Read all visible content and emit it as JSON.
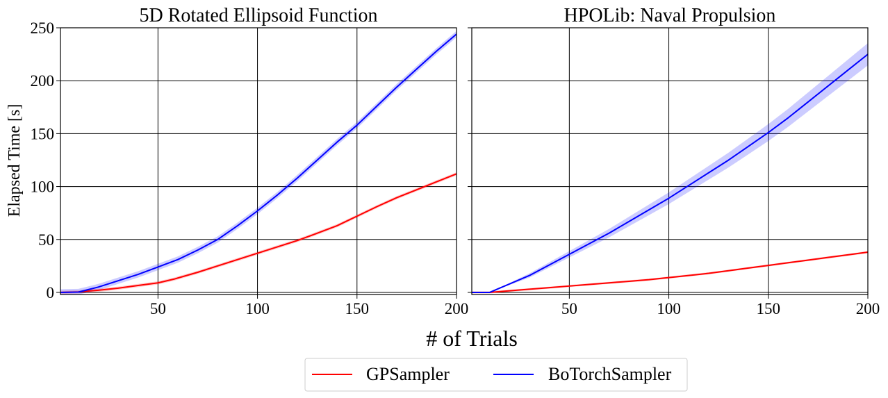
{
  "figure": {
    "xlabel": "# of Trials",
    "ylabel": "Elapsed Time [s]"
  },
  "legend": {
    "placement": "bottom-center",
    "items": [
      {
        "label": "GPSampler",
        "color": "#ff0000"
      },
      {
        "label": "BoTorchSampler",
        "color": "#0000ff"
      }
    ]
  },
  "chart_data": [
    {
      "type": "line",
      "title": "5D Rotated Ellipsoid Function",
      "xlabel": "# of Trials",
      "ylabel": "Elapsed Time [s]",
      "xlim": [
        1,
        200
      ],
      "ylim": [
        -2,
        250
      ],
      "xticks": [
        50,
        100,
        150,
        200
      ],
      "yticks": [
        0,
        50,
        100,
        150,
        200,
        250
      ],
      "grid": true,
      "series": [
        {
          "name": "GPSampler",
          "color": "#ff0000",
          "x": [
            1,
            10,
            20,
            30,
            40,
            50,
            58,
            70,
            80,
            90,
            100,
            110,
            120,
            128,
            140,
            150,
            160,
            170,
            180,
            190,
            200
          ],
          "y": [
            0,
            0.5,
            2,
            4,
            6.5,
            9,
            12.5,
            19,
            25,
            31,
            37,
            43,
            49,
            54.5,
            63,
            72,
            81,
            89.5,
            97,
            104.5,
            112
          ],
          "band": 1.5
        },
        {
          "name": "BoTorchSampler",
          "color": "#0000ff",
          "x": [
            1,
            10,
            20,
            30,
            40,
            50,
            60,
            70,
            80,
            90,
            100,
            110,
            120,
            130,
            140,
            150,
            160,
            170,
            180,
            190,
            200
          ],
          "y": [
            0,
            0.3,
            5,
            11,
            17,
            24,
            31,
            40,
            50,
            63,
            77,
            92,
            108,
            125,
            142,
            158,
            176,
            194,
            211,
            228,
            244
          ],
          "band": 3
        }
      ]
    },
    {
      "type": "line",
      "title": "HPOLib: Naval Propulsion",
      "xlabel": "# of Trials",
      "ylabel": "Elapsed Time [s]",
      "xlim": [
        1,
        200
      ],
      "ylim": [
        -2,
        250
      ],
      "xticks": [
        50,
        100,
        150,
        200
      ],
      "yticks": [
        0,
        50,
        100,
        150,
        200,
        250
      ],
      "grid": true,
      "series": [
        {
          "name": "GPSampler",
          "color": "#ff0000",
          "x": [
            1,
            10,
            20,
            30,
            40,
            50,
            60,
            70,
            80,
            90,
            100,
            110,
            120,
            130,
            140,
            150,
            160,
            170,
            180,
            190,
            200
          ],
          "y": [
            0,
            0,
            1.5,
            3,
            4.5,
            6,
            7.5,
            9,
            10.5,
            12,
            14,
            16,
            18,
            20.5,
            23,
            25.5,
            28,
            30.5,
            33,
            35.5,
            38
          ],
          "band": 1
        },
        {
          "name": "BoTorchSampler",
          "color": "#0000ff",
          "x": [
            1,
            10,
            15,
            20,
            30,
            40,
            50,
            60,
            70,
            80,
            90,
            100,
            110,
            120,
            130,
            140,
            150,
            160,
            170,
            180,
            190,
            200
          ],
          "y": [
            0,
            0,
            4,
            8,
            16,
            26,
            36,
            46,
            56,
            67,
            78,
            89,
            101,
            113,
            125,
            138,
            151,
            165,
            180,
            195,
            210,
            225
          ],
          "band_low": [
            0,
            0,
            0.5,
            1,
            2,
            2.5,
            3,
            3.5,
            4,
            4.5,
            5,
            5.5,
            6,
            6.5,
            7,
            7.5,
            8,
            8.5,
            9,
            9.5,
            10,
            10.5
          ],
          "band_high": [
            0,
            0,
            0.5,
            1,
            2,
            2.5,
            3,
            3.5,
            4,
            4.5,
            5,
            5.5,
            6,
            6.5,
            7,
            7.5,
            8,
            8.5,
            9,
            9.5,
            10,
            10.5
          ]
        }
      ]
    }
  ]
}
